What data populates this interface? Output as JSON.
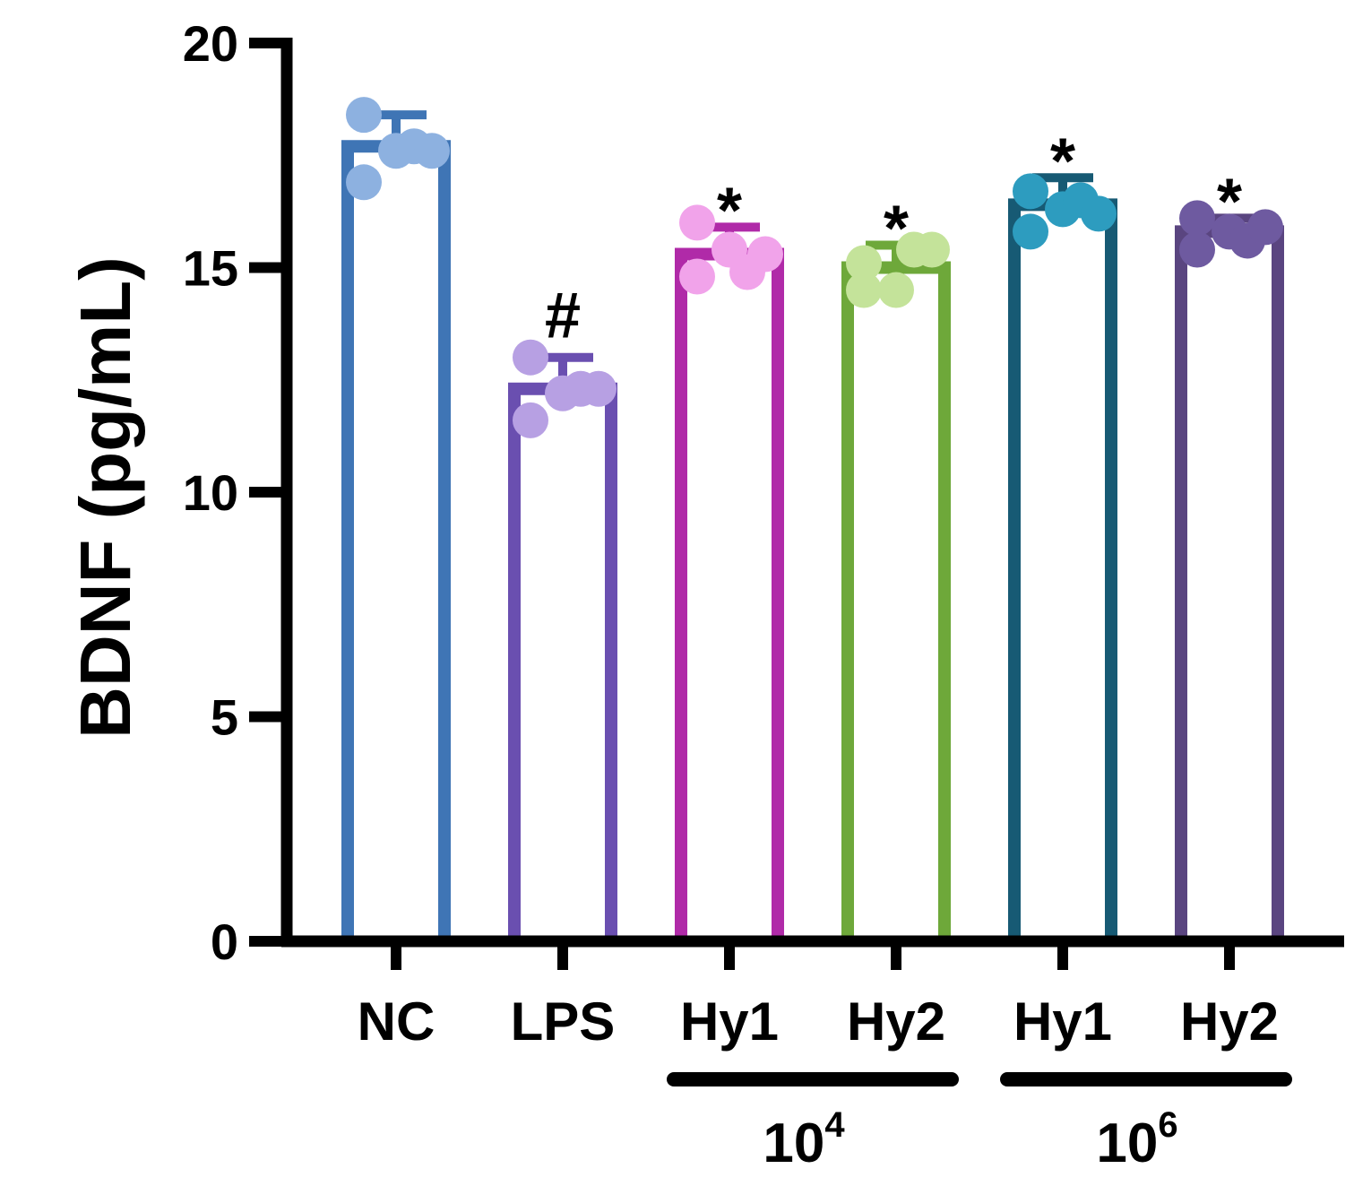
{
  "chart_data": {
    "type": "bar",
    "title": "",
    "xlabel": "",
    "ylabel": "BDNF (pg/mL)",
    "ylim": [
      0,
      20
    ],
    "yticks": [
      0,
      5,
      10,
      15,
      20
    ],
    "yticks_text": [
      "0",
      "5",
      "10",
      "15",
      "20"
    ],
    "grid": false,
    "legend": "none",
    "categories": [
      "NC",
      "LPS",
      "Hy1",
      "Hy2",
      "Hy1",
      "Hy2"
    ],
    "values": [
      17.7,
      12.3,
      15.3,
      15.0,
      16.4,
      15.8
    ],
    "errors": [
      0.7,
      0.7,
      0.6,
      0.5,
      0.6,
      0.3
    ],
    "points": [
      [
        18.4,
        16.9,
        17.6,
        17.7,
        17.6
      ],
      [
        13.0,
        11.6,
        12.2,
        12.3,
        12.3
      ],
      [
        14.8,
        16.0,
        15.4,
        14.9,
        15.3
      ],
      [
        14.5,
        15.1,
        14.5,
        15.4,
        15.4
      ],
      [
        15.8,
        16.7,
        16.3,
        16.5,
        16.2
      ],
      [
        15.4,
        16.1,
        15.8,
        15.6,
        15.9
      ]
    ],
    "significance": [
      "",
      "#",
      "*",
      "*",
      "*",
      "*"
    ],
    "bar_colors": [
      "#3f75b5",
      "#6a4fb0",
      "#b02aa8",
      "#6ea83a",
      "#175a74",
      "#5a4580"
    ],
    "point_colors": [
      "#8db1e0",
      "#b7a0e3",
      "#f1a3ea",
      "#c4e39a",
      "#2d9cbf",
      "#6e5aa0"
    ],
    "groups": [
      {
        "base": "10",
        "exp": "4",
        "from": 2,
        "to": 3
      },
      {
        "base": "10",
        "exp": "6",
        "from": 4,
        "to": 5
      }
    ]
  }
}
